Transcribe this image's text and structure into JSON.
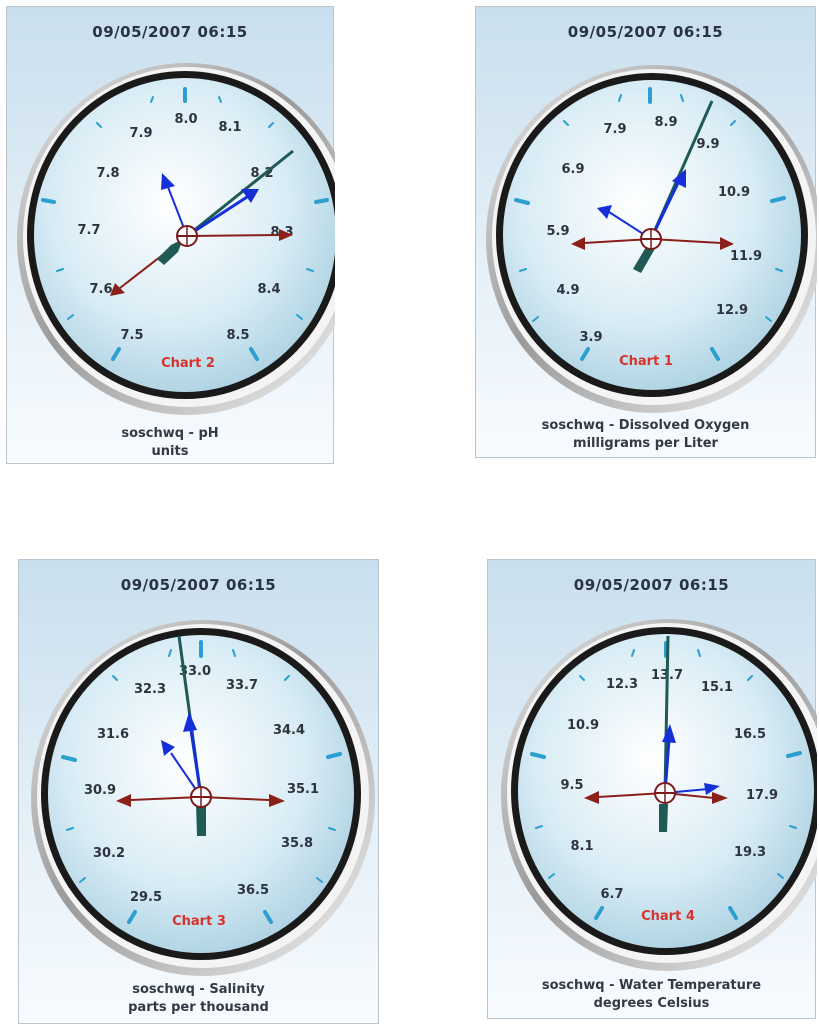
{
  "colors": {
    "hand_long": "#1f5a55",
    "hand_blue": "#1530d8",
    "hand_red": "#8b1f1a",
    "tick_mark": "#2a9fd0",
    "chart_label": "#d8322d"
  },
  "gauges": [
    {
      "timestamp": "09/05/2007 06:15",
      "chart_label": "Chart 2",
      "caption_line1": "soschwq - pH",
      "caption_line2": "units",
      "scale_labels": [
        "8.0",
        "8.1",
        "8.2",
        "8.3",
        "8.4",
        "8.5",
        "7.5",
        "7.6",
        "7.7",
        "7.8",
        "7.9"
      ]
    },
    {
      "timestamp": "09/05/2007 06:15",
      "chart_label": "Chart 1",
      "caption_line1": "soschwq - Dissolved Oxygen",
      "caption_line2": "milligrams per Liter",
      "scale_labels": [
        "8.9",
        "9.9",
        "10.9",
        "11.9",
        "12.9",
        "3.9",
        "4.9",
        "5.9",
        "6.9",
        "7.9"
      ]
    },
    {
      "timestamp": "09/05/2007 06:15",
      "chart_label": "Chart 3",
      "caption_line1": "soschwq - Salinity",
      "caption_line2": "parts per thousand",
      "scale_labels": [
        "33.0",
        "33.7",
        "34.4",
        "35.1",
        "35.8",
        "36.5",
        "29.5",
        "30.2",
        "30.9",
        "31.6",
        "32.3"
      ]
    },
    {
      "timestamp": "09/05/2007 06:15",
      "chart_label": "Chart 4",
      "caption_line1": "soschwq - Water Temperature",
      "caption_line2": "degrees Celsius",
      "scale_labels": [
        "13.7",
        "15.1",
        "16.5",
        "17.9",
        "19.3",
        "6.7",
        "8.1",
        "9.5",
        "10.9",
        "12.3"
      ]
    }
  ]
}
